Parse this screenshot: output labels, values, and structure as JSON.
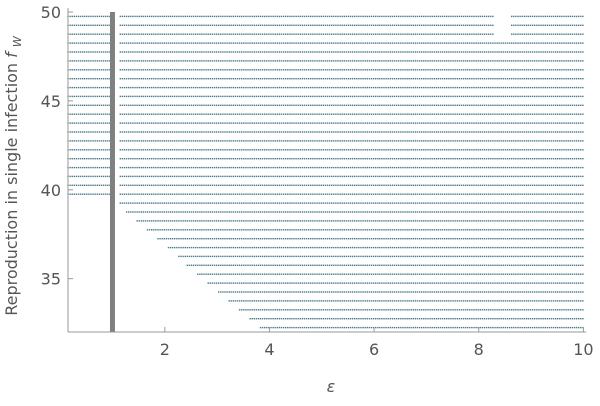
{
  "chart_data": {
    "type": "scatter",
    "title": "",
    "xlabel": "ε",
    "ylabel_main": "Reproduction in single infection ",
    "ylabel_var": "f",
    "ylabel_sub": "W",
    "xlim": [
      0.15,
      10.05
    ],
    "ylim": [
      32.0,
      50.0
    ],
    "x_ticks": [
      2,
      4,
      6,
      8,
      10
    ],
    "y_ticks": [
      35,
      40,
      45,
      50
    ],
    "grid": false,
    "dot_color": "#4a7a8c",
    "reference_line": {
      "x": 1.0,
      "color": "#808080"
    },
    "dot_grid": {
      "dx": 0.04,
      "dy": 0.5
    },
    "region_description_points": {
      "left_band_upper_boundary_y": 39.5,
      "diagonal_start": [
        1.15,
        39.0
      ],
      "diagonal_end": [
        3.9,
        32.0
      ],
      "gap_top_x_range": [
        8.3,
        8.6
      ],
      "gap_top_y_min": 48.5
    }
  }
}
